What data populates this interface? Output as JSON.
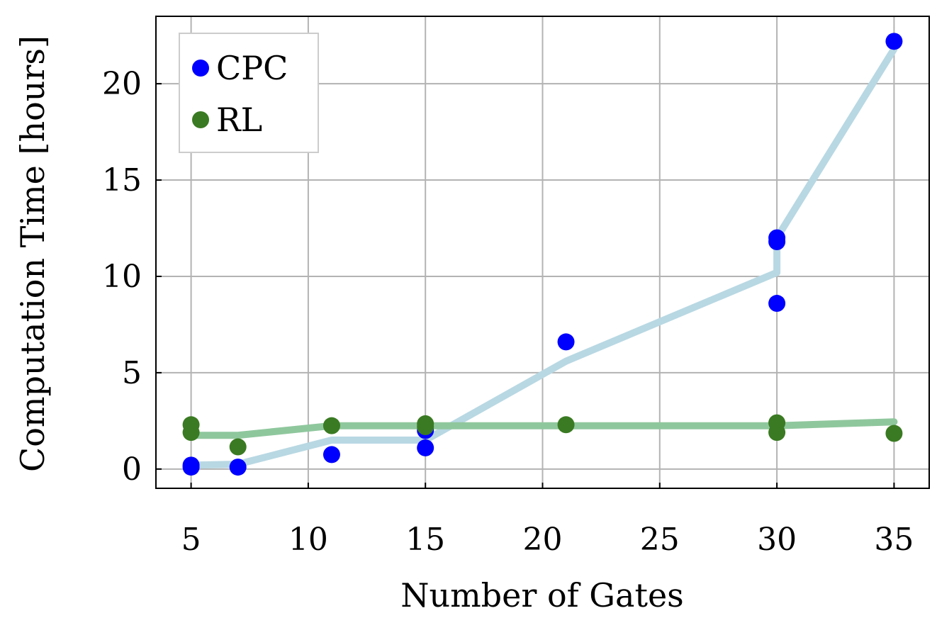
{
  "chart_data": {
    "type": "scatter",
    "title": "",
    "xlabel": "Number of Gates",
    "ylabel": "Computation Time [hours]",
    "xlim": [
      3.5,
      36.5
    ],
    "ylim": [
      -1,
      23.5
    ],
    "xticks": [
      5,
      10,
      15,
      20,
      25,
      30,
      35
    ],
    "yticks": [
      0,
      5,
      10,
      15,
      20
    ],
    "grid": true,
    "legend_position": "top-left",
    "series": [
      {
        "name": "CPC",
        "color": "#0000ff",
        "trend_color": "#b8d8e3",
        "points": [
          [
            5,
            0.1
          ],
          [
            5,
            0.2
          ],
          [
            7,
            0.1
          ],
          [
            11,
            0.75
          ],
          [
            15,
            1.1
          ],
          [
            15,
            2.0
          ],
          [
            21,
            6.6
          ],
          [
            30,
            8.6
          ],
          [
            30,
            11.8
          ],
          [
            30,
            12.0
          ],
          [
            35,
            22.2
          ]
        ],
        "trend": [
          [
            5,
            0.2
          ],
          [
            7,
            0.25
          ],
          [
            11,
            1.5
          ],
          [
            15,
            1.5
          ],
          [
            21,
            5.6
          ],
          [
            30,
            10.2
          ],
          [
            30,
            12.0
          ],
          [
            35,
            21.8
          ]
        ]
      },
      {
        "name": "RL",
        "color": "#3a7a22",
        "trend_color": "#8fc79d",
        "points": [
          [
            5,
            1.9
          ],
          [
            5,
            2.3
          ],
          [
            7,
            1.15
          ],
          [
            11,
            2.25
          ],
          [
            15,
            2.2
          ],
          [
            15,
            2.35
          ],
          [
            21,
            2.3
          ],
          [
            30,
            1.9
          ],
          [
            30,
            2.4
          ],
          [
            35,
            1.85
          ]
        ],
        "trend": [
          [
            5,
            1.75
          ],
          [
            7,
            1.75
          ],
          [
            11,
            2.25
          ],
          [
            21,
            2.25
          ],
          [
            30,
            2.25
          ],
          [
            35,
            2.45
          ]
        ]
      }
    ]
  }
}
